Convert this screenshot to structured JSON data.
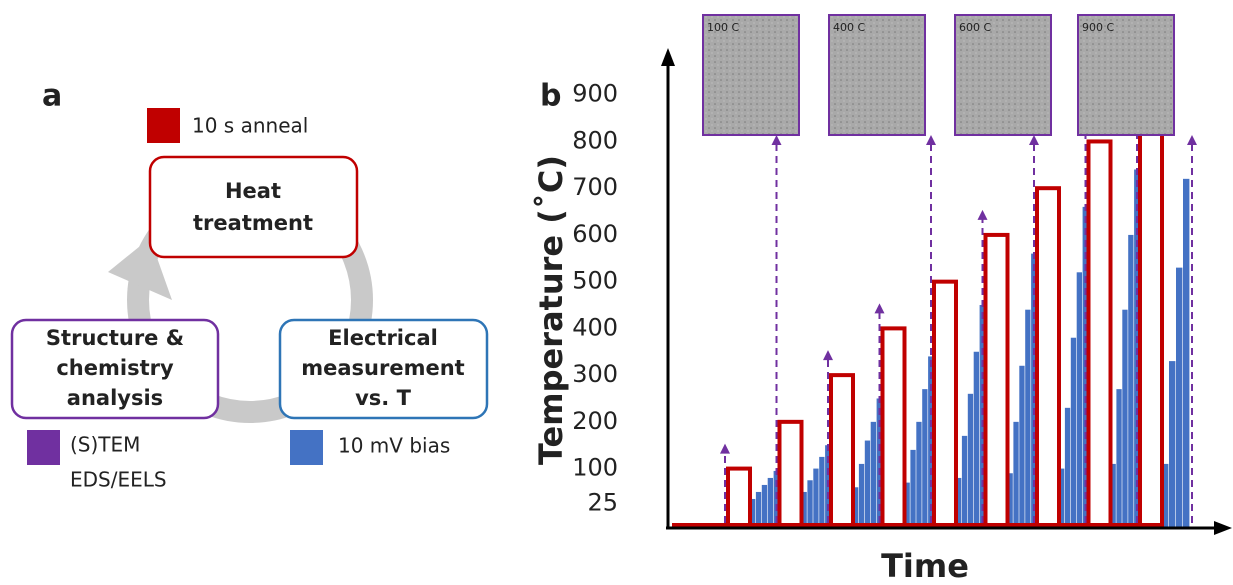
{
  "panel_a": {
    "label": "a",
    "heat_box": {
      "lines": [
        "Heat",
        "treatment"
      ]
    },
    "structure_box": {
      "lines": [
        "Structure &",
        "chemistry",
        "analysis"
      ]
    },
    "electrical_box": {
      "lines": [
        "Electrical",
        "measurement",
        "vs. T"
      ]
    },
    "anneal_legend": "10 s anneal",
    "tem_legend": [
      "(S)TEM",
      "EDS/EELS"
    ],
    "bias_legend": "10 mV bias"
  },
  "chart_data": {
    "type": "bar",
    "label": "b",
    "ylabel": "Temperature (˚C)",
    "xlabel": "Time",
    "ylim": [
      -25,
      985
    ],
    "yticks": [
      25,
      100,
      200,
      300,
      400,
      500,
      600,
      700,
      800,
      900
    ],
    "anneal_color": "#c00000",
    "measurement_color": "#4472c4",
    "anneal_temps": [
      100,
      200,
      300,
      400,
      500,
      600,
      700,
      800,
      900
    ],
    "measurement_groups": [
      [
        35,
        50,
        65,
        80,
        95
      ],
      [
        50,
        75,
        100,
        125,
        150
      ],
      [
        60,
        110,
        160,
        200,
        250
      ],
      [
        70,
        140,
        200,
        270,
        340
      ],
      [
        80,
        170,
        260,
        350,
        450
      ],
      [
        90,
        200,
        320,
        440,
        560
      ],
      [
        100,
        230,
        380,
        520,
        660
      ],
      [
        110,
        270,
        440,
        600,
        740
      ],
      [
        110,
        330,
        530,
        720
      ]
    ],
    "insets": [
      "100 C",
      "400 C",
      "600 C",
      "900 C"
    ]
  }
}
